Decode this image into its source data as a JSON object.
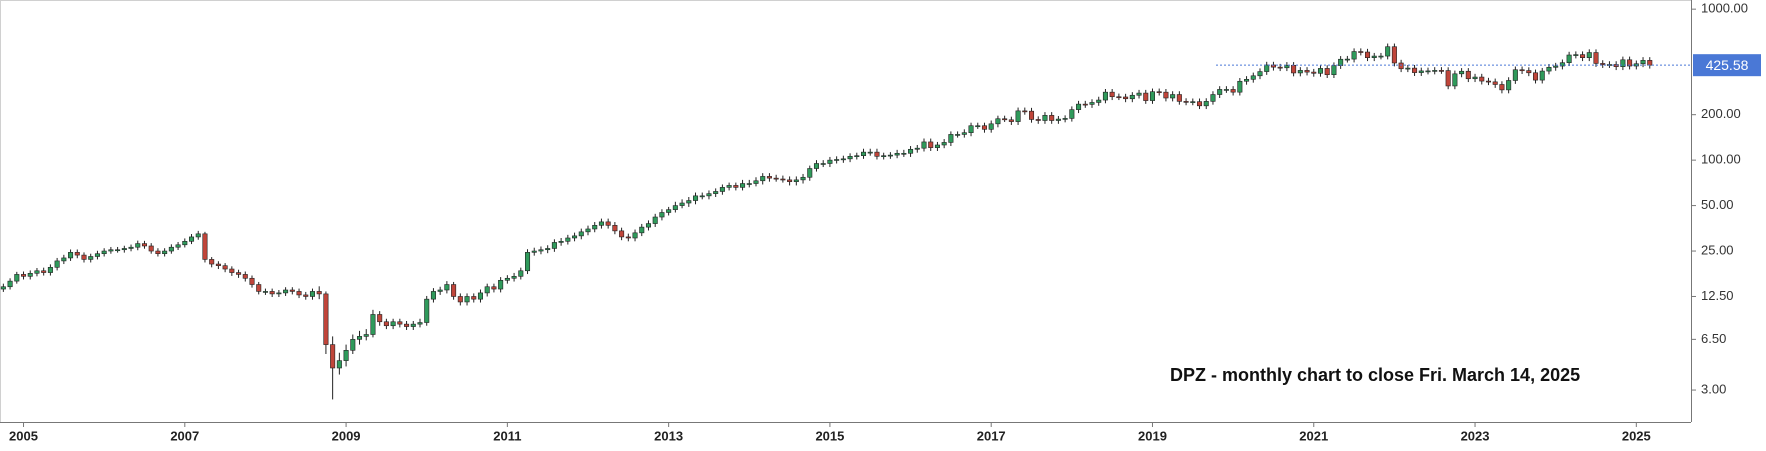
{
  "chart_data": {
    "type": "candlestick",
    "annotation": "DPZ - monthly chart to close Fri. March 14, 2025",
    "log_scale": true,
    "grid": false,
    "up_color": "#2f9a5b",
    "down_color": "#c0453a",
    "last_line_color": "#4a78d6",
    "ylim": [
      1.9,
      1150
    ],
    "yticks": [
      {
        "value": 3,
        "label": "3.00"
      },
      {
        "value": 6.5,
        "label": "6.50"
      },
      {
        "value": 12.5,
        "label": "12.50"
      },
      {
        "value": 25,
        "label": "25.00"
      },
      {
        "value": 50,
        "label": "50.00"
      },
      {
        "value": 100,
        "label": "100.00"
      },
      {
        "value": 200,
        "label": "200.00"
      },
      {
        "value": 1000,
        "label": "1000.00"
      }
    ],
    "categories": [
      null,
      null,
      null,
      "2005",
      null,
      null,
      null,
      null,
      null,
      null,
      null,
      null,
      null,
      null,
      null,
      null,
      null,
      null,
      null,
      null,
      null,
      null,
      null,
      null,
      null,
      null,
      null,
      "2007",
      null,
      null,
      null,
      null,
      null,
      null,
      null,
      null,
      null,
      null,
      null,
      null,
      null,
      null,
      null,
      null,
      null,
      null,
      null,
      null,
      null,
      null,
      null,
      "2009",
      null,
      null,
      null,
      null,
      null,
      null,
      null,
      null,
      null,
      null,
      null,
      null,
      null,
      null,
      null,
      null,
      null,
      null,
      null,
      null,
      null,
      null,
      null,
      "2011",
      null,
      null,
      null,
      null,
      null,
      null,
      null,
      null,
      null,
      null,
      null,
      null,
      null,
      null,
      null,
      null,
      null,
      null,
      null,
      null,
      null,
      null,
      null,
      "2013",
      null,
      null,
      null,
      null,
      null,
      null,
      null,
      null,
      null,
      null,
      null,
      null,
      null,
      null,
      null,
      null,
      null,
      null,
      null,
      null,
      null,
      null,
      null,
      "2015",
      null,
      null,
      null,
      null,
      null,
      null,
      null,
      null,
      null,
      null,
      null,
      null,
      null,
      null,
      null,
      null,
      null,
      null,
      null,
      null,
      null,
      null,
      null,
      "2017",
      null,
      null,
      null,
      null,
      null,
      null,
      null,
      null,
      null,
      null,
      null,
      null,
      null,
      null,
      null,
      null,
      null,
      null,
      null,
      null,
      null,
      null,
      null,
      "2019",
      null,
      null,
      null,
      null,
      null,
      null,
      null,
      null,
      null,
      null,
      null,
      null,
      null,
      null,
      null,
      null,
      null,
      null,
      null,
      null,
      null,
      null,
      null,
      "2021",
      null,
      null,
      null,
      null,
      null,
      null,
      null,
      null,
      null,
      null,
      null,
      null,
      null,
      null,
      null,
      null,
      null,
      null,
      null,
      null,
      null,
      null,
      null,
      "2023",
      null,
      null,
      null,
      null,
      null,
      null,
      null,
      null,
      null,
      null,
      null,
      null,
      null,
      null,
      null,
      null,
      null,
      null,
      null,
      null,
      null,
      null,
      null,
      "2025",
      null,
      null
    ],
    "open": [
      14.0,
      14.5,
      15.8,
      17.5,
      17.0,
      17.8,
      18.5,
      18.0,
      19.5,
      21.5,
      22.5,
      24.5,
      23.5,
      22.0,
      23.0,
      24.0,
      25.0,
      25.5,
      25.5,
      26.0,
      26.5,
      28.0,
      27.0,
      25.0,
      24.0,
      25.0,
      26.5,
      27.5,
      29.0,
      31.0,
      32.5,
      22.0,
      20.5,
      20.0,
      19.0,
      18.0,
      17.5,
      16.5,
      15.0,
      13.5,
      13.5,
      13.0,
      13.2,
      13.8,
      13.5,
      12.8,
      12.5,
      13.5,
      13.0,
      6.0,
      4.2,
      4.7,
      5.5,
      6.5,
      6.8,
      7.0,
      9.5,
      8.5,
      8.0,
      8.5,
      8.2,
      7.9,
      8.2,
      8.4,
      12.0,
      13.5,
      13.8,
      15.0,
      12.5,
      11.5,
      12.5,
      12.0,
      13.2,
      14.5,
      14.0,
      16.0,
      16.5,
      17.0,
      18.5,
      24.5,
      25.0,
      25.5,
      26.0,
      28.5,
      29.0,
      30.5,
      31.5,
      33.5,
      35,
      37,
      39,
      37,
      34,
      31,
      30.5,
      33,
      36,
      38,
      42,
      45,
      47,
      50,
      52,
      54,
      58,
      58,
      60,
      62,
      66,
      68,
      66,
      70,
      70,
      73,
      78,
      76,
      75,
      74,
      72,
      74,
      77,
      88,
      95,
      95,
      100,
      101,
      102,
      106,
      107,
      113,
      113,
      106,
      107,
      108,
      111,
      111,
      118,
      120,
      132,
      121,
      126,
      131,
      148,
      148,
      152,
      169,
      169,
      160,
      174,
      188,
      185,
      180,
      212,
      211,
      186,
      183,
      198,
      183,
      187,
      189,
      216,
      235,
      234,
      241,
      250,
      282,
      263,
      262,
      255,
      269,
      278,
      248,
      284,
      282,
      258,
      272,
      245,
      243,
      244,
      229,
      245,
      272,
      294,
      294,
      282,
      333,
      343,
      362,
      386,
      427,
      413,
      409,
      425,
      378,
      393,
      383,
      376,
      405,
      368,
      423,
      466,
      467,
      524,
      520,
      477,
      489,
      489,
      564,
      440,
      403,
      407,
      380,
      390,
      390,
      393,
      392,
      310,
      373,
      388,
      346,
      355,
      334,
      330,
      317,
      292,
      337,
      397,
      392,
      379,
      339,
      389,
      412,
      420,
      442,
      497,
      500,
      477,
      516,
      437,
      429,
      430,
      416,
      462,
      420,
      435,
      458
    ],
    "high": [
      15.2,
      16.5,
      18.2,
      18.3,
      18.6,
      19.3,
      19.4,
      20.4,
      22.5,
      23.6,
      25.6,
      25.6,
      24.5,
      24.0,
      25.1,
      26.1,
      26.6,
      26.6,
      27.1,
      27.6,
      29.3,
      29.2,
      28.2,
      26.1,
      26.1,
      27.7,
      28.7,
      30.3,
      32.4,
      34.0,
      33.5,
      22.8,
      21.4,
      20.8,
      19.8,
      18.8,
      18.3,
      17.2,
      15.6,
      14.1,
      14.1,
      13.8,
      14.4,
      14.4,
      14.1,
      13.4,
      14.1,
      14.6,
      13.5,
      6.8,
      5.3,
      6.0,
      7.0,
      7.4,
      7.6,
      10.2,
      10.0,
      8.9,
      8.9,
      8.9,
      8.6,
      8.6,
      8.9,
      12.6,
      14.2,
      14.5,
      15.8,
      15.6,
      13.1,
      13.1,
      13.1,
      13.9,
      15.2,
      15.2,
      16.8,
      17.3,
      17.9,
      19.4,
      25.7,
      26.3,
      26.8,
      27.3,
      29.9,
      30.5,
      32.0,
      33.1,
      35.2,
      36.8,
      38.9,
      41,
      41,
      38.9,
      35.7,
      32.6,
      34.7,
      37.8,
      39.9,
      44.1,
      47.3,
      49,
      53,
      55,
      57,
      61,
      61,
      63,
      65,
      69,
      71,
      71,
      74,
      74,
      77,
      82,
      82,
      80,
      79,
      78,
      78,
      81,
      92,
      100,
      100,
      105,
      106,
      107,
      111,
      112,
      119,
      119,
      119,
      112,
      113,
      117,
      117,
      124,
      126,
      139,
      139,
      132,
      138,
      155,
      155,
      160,
      177,
      177,
      177,
      183,
      197,
      197,
      194,
      223,
      223,
      222,
      195,
      208,
      208,
      196,
      198,
      227,
      247,
      247,
      253,
      263,
      296,
      296,
      276,
      275,
      282,
      292,
      292,
      298,
      298,
      296,
      286,
      286,
      257,
      256,
      256,
      257,
      286,
      309,
      309,
      309,
      350,
      360,
      380,
      405,
      448,
      448,
      434,
      446,
      446,
      413,
      413,
      402,
      425,
      425,
      444,
      489,
      490,
      550,
      550,
      546,
      513,
      513,
      592,
      592,
      462,
      427,
      427,
      410,
      410,
      413,
      413,
      412,
      392,
      407,
      407,
      373,
      373,
      351,
      347,
      333,
      354,
      417,
      417,
      412,
      398,
      408,
      433,
      441,
      464,
      522,
      525,
      525,
      542,
      542,
      459,
      452,
      452,
      485,
      485,
      457,
      481,
      481
    ],
    "low": [
      13.4,
      13.9,
      15.2,
      16.2,
      16.2,
      17.0,
      17.2,
      17.2,
      18.6,
      20.5,
      21.5,
      22.4,
      21.0,
      21.0,
      22.0,
      23.0,
      24.0,
      24.4,
      24.4,
      24.9,
      25.3,
      25.9,
      24.0,
      23.0,
      23.0,
      24.0,
      25.4,
      26.4,
      27.8,
      29.7,
      21.0,
      19.5,
      19.0,
      18.1,
      17.1,
      16.6,
      15.7,
      14.3,
      12.9,
      12.8,
      12.4,
      12.4,
      12.6,
      12.9,
      12.2,
      11.9,
      11.9,
      12.0,
      5.2,
      2.6,
      3.8,
      4.3,
      5.2,
      6.0,
      6.4,
      6.7,
      8.0,
      7.6,
      7.6,
      7.8,
      7.5,
      7.5,
      7.8,
      8.0,
      11.4,
      12.8,
      13.1,
      11.9,
      10.9,
      10.9,
      11.4,
      11.4,
      12.5,
      13.3,
      13.3,
      15.2,
      15.7,
      16.2,
      17.6,
      23.3,
      23.8,
      24.2,
      24.7,
      27.1,
      27.6,
      29.0,
      29.9,
      31.8,
      33.3,
      35.2,
      35.2,
      32.3,
      29.5,
      29,
      29,
      31.4,
      34.2,
      36.1,
      39.9,
      43,
      45,
      48,
      49,
      51,
      55,
      55,
      57,
      59,
      63,
      63,
      63,
      66,
      67,
      69,
      72,
      72,
      71,
      68,
      68,
      70,
      73,
      84,
      90,
      90,
      95,
      96,
      97,
      101,
      102,
      107,
      101,
      101,
      102,
      103,
      105,
      105,
      112,
      114,
      115,
      115,
      120,
      124,
      141,
      141,
      144,
      161,
      152,
      152,
      165,
      179,
      171,
      171,
      200,
      177,
      174,
      174,
      174,
      174,
      178,
      180,
      205,
      222,
      222,
      229,
      238,
      250,
      250,
      242,
      242,
      256,
      236,
      236,
      268,
      245,
      245,
      233,
      231,
      231,
      218,
      218,
      233,
      258,
      279,
      268,
      268,
      316,
      326,
      344,
      367,
      392,
      389,
      389,
      359,
      359,
      364,
      357,
      357,
      350,
      350,
      402,
      443,
      444,
      494,
      453,
      453,
      465,
      465,
      418,
      383,
      383,
      361,
      361,
      370,
      370,
      373,
      295,
      295,
      354,
      329,
      329,
      317,
      314,
      301,
      277,
      277,
      320,
      372,
      360,
      322,
      322,
      370,
      391,
      399,
      420,
      472,
      453,
      453,
      415,
      408,
      408,
      395,
      395,
      399,
      399,
      413,
      404
    ],
    "close": [
      14.5,
      15.8,
      17.5,
      17.0,
      17.8,
      18.5,
      18.0,
      19.5,
      21.5,
      22.5,
      24.5,
      23.5,
      22.0,
      23.0,
      24.0,
      25.0,
      25.5,
      25.5,
      26.0,
      26.5,
      28.0,
      27.0,
      25.0,
      24.0,
      25.0,
      26.5,
      27.5,
      29.0,
      31.0,
      32.5,
      22.0,
      20.5,
      20.0,
      19.0,
      18.0,
      17.5,
      16.5,
      15.0,
      13.5,
      13.5,
      13.0,
      13.2,
      13.8,
      13.5,
      12.8,
      12.5,
      13.5,
      13.0,
      6.0,
      4.2,
      4.7,
      5.5,
      6.5,
      6.8,
      7.0,
      9.5,
      8.5,
      8.0,
      8.5,
      8.2,
      7.9,
      8.2,
      8.4,
      12.0,
      13.5,
      13.8,
      15.0,
      12.5,
      11.5,
      12.5,
      12.0,
      13.2,
      14.5,
      14.0,
      16.0,
      16.5,
      17.0,
      18.5,
      24.5,
      25.0,
      25.5,
      26.0,
      28.5,
      29.0,
      30.5,
      31.5,
      33.5,
      35,
      37,
      39,
      37,
      34,
      31,
      30.5,
      33,
      36,
      38,
      42,
      45,
      47,
      50,
      52,
      54,
      58,
      58,
      60,
      62,
      66,
      68,
      66,
      70,
      70,
      73,
      78,
      76,
      75,
      74,
      72,
      74,
      77,
      88,
      95,
      95,
      100,
      101,
      102,
      106,
      107,
      113,
      113,
      106,
      107,
      108,
      111,
      111,
      118,
      120,
      132,
      121,
      126,
      131,
      148,
      148,
      152,
      169,
      169,
      160,
      174,
      188,
      185,
      180,
      212,
      211,
      186,
      183,
      198,
      183,
      187,
      189,
      216,
      235,
      234,
      241,
      250,
      282,
      263,
      262,
      255,
      269,
      278,
      248,
      284,
      282,
      258,
      272,
      245,
      243,
      244,
      229,
      245,
      272,
      294,
      294,
      282,
      333,
      343,
      362,
      386,
      427,
      413,
      409,
      425,
      378,
      393,
      383,
      376,
      405,
      368,
      423,
      466,
      467,
      524,
      520,
      477,
      489,
      489,
      564,
      440,
      403,
      407,
      380,
      390,
      390,
      393,
      392,
      310,
      373,
      388,
      346,
      355,
      334,
      330,
      317,
      292,
      337,
      397,
      392,
      379,
      339,
      389,
      412,
      420,
      442,
      497,
      500,
      477,
      516,
      437,
      429,
      430,
      416,
      462,
      420,
      435,
      458,
      425.58
    ]
  }
}
